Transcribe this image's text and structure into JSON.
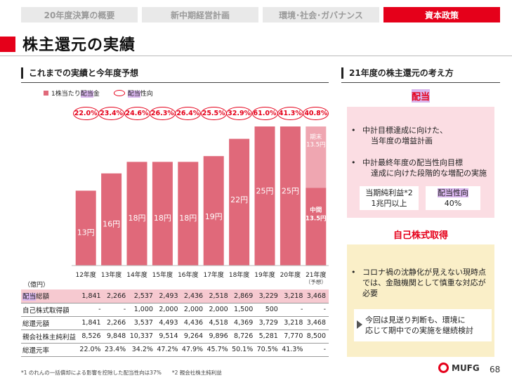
{
  "tabs": [
    {
      "label": "20年度決算の概要",
      "active": false
    },
    {
      "label": "新中期経営計画",
      "active": false
    },
    {
      "label": "環境･社会･ガバナンス",
      "active": false
    },
    {
      "label": "資本政策",
      "active": true
    }
  ],
  "title": "株主還元の実績",
  "left": {
    "header": "これまでの実績と今年度予想",
    "legend_bar_pre": "1株当たり",
    "legend_bar_hl": "配当",
    "legend_bar_post": "金",
    "legend_ratio_hl": "配当",
    "legend_ratio_post": "性向"
  },
  "chart_data": {
    "type": "bar",
    "categories": [
      "12年度",
      "13年度",
      "14年度",
      "15年度",
      "16年度",
      "17年度",
      "18年度",
      "19年度",
      "20年度",
      "21年度"
    ],
    "forecast_note": "（予想）",
    "values": [
      13,
      16,
      18,
      18,
      18,
      19,
      22,
      25,
      25,
      27
    ],
    "value_labels": [
      "13円",
      "16円",
      "18円",
      "18円",
      "18円",
      "19円",
      "22円",
      "25円",
      "25円",
      "27円"
    ],
    "payout_ratios": [
      "22.0%",
      "23.4%",
      "24.6%",
      "26.3%",
      "26.4%",
      "25.5%",
      "32.9%",
      "61.0%",
      "41.3%",
      "40.8%"
    ],
    "forecast_split": {
      "interim_label": "中間",
      "interim_value": "13.5円",
      "final_label": "期末",
      "final_value": "13.5円"
    },
    "colors": {
      "bar": "#e0697a",
      "final": "#efa6b1",
      "ratio": "#e5001a"
    }
  },
  "table": {
    "unit": "（億円）",
    "rows": [
      {
        "label": "配当総額",
        "highlight": true,
        "values": [
          "1,841",
          "2,266",
          "2,537",
          "2,493",
          "2,436",
          "2,518",
          "2,869",
          "3,229",
          "3,218",
          "3,468"
        ]
      },
      {
        "label": "自己株式取得額",
        "highlight": false,
        "values": [
          "-",
          "-",
          "1,000",
          "2,000",
          "2,000",
          "2,000",
          "1,500",
          "500",
          "-",
          "-"
        ]
      },
      {
        "label": "総還元額",
        "highlight": false,
        "values": [
          "1,841",
          "2,266",
          "3,537",
          "4,493",
          "4,436",
          "4,518",
          "4,369",
          "3,729",
          "3,218",
          "3,468"
        ]
      },
      {
        "label": "親会社株主純利益",
        "highlight": false,
        "values": [
          "8,526",
          "9,848",
          "10,337",
          "9,514",
          "9,264",
          "9,896",
          "8,726",
          "5,281",
          "7,770",
          "8,500"
        ]
      },
      {
        "label": "総還元率",
        "highlight": false,
        "values": [
          "22.0%",
          "23.4%",
          "34.2%",
          "47.2%",
          "47.9%",
          "45.7%",
          "50.1%",
          "70.5%",
          "41.3%",
          "-"
        ]
      }
    ]
  },
  "footnote": "*1 のれんの一括償却による影響を控除した配当性向は37%　　*2 親会社株主純利益",
  "right": {
    "header": "21年度の株主還元の考え方",
    "dividend_title": "配当",
    "dividend_bullets": [
      [
        "中計目標達成に向けた、",
        "当年度の増益計画"
      ],
      [
        "中計最終年度の配当性向目標",
        "達成に向けた段階的な増配の実施"
      ]
    ],
    "kpi1_label": "当期純利益*2",
    "kpi1_value": "1兆円以上",
    "kpi2_label": "配当性向",
    "kpi2_value": "40%",
    "buyback_title": "自己株式取得",
    "buyback_bullet": [
      "コロナ禍の沈静化が見えない現時点",
      "では、金融機関として慎重な対応が",
      "必要"
    ],
    "buyback_note": [
      "今回は見送り判断も、環境に",
      "応じて期中での実施を継続検討"
    ],
    "bullet_char": "•"
  },
  "brand": "MUFG",
  "page_number": "68"
}
